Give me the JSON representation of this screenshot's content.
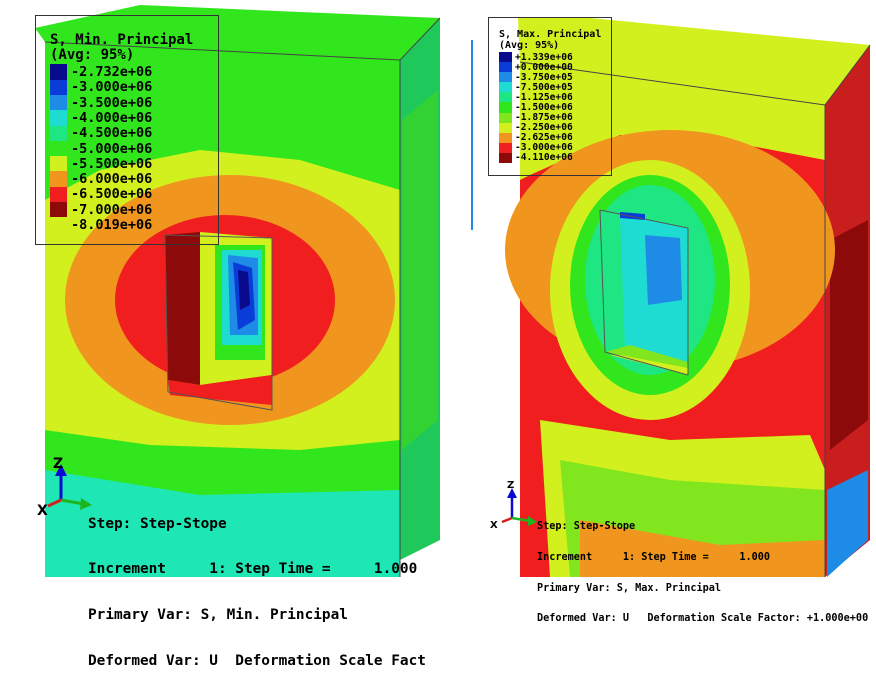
{
  "left": {
    "legend": {
      "title_line1": "S, Min. Principal",
      "title_line2": "(Avg: 95%)",
      "entries": [
        {
          "label": "-2.732e+06",
          "color": "#0a0a8c"
        },
        {
          "label": "-3.000e+06",
          "color": "#0a3cd8"
        },
        {
          "label": "-3.500e+06",
          "color": "#1e8ce6"
        },
        {
          "label": "-4.000e+06",
          "color": "#1edcd2"
        },
        {
          "label": "-4.500e+06",
          "color": "#1ee682"
        },
        {
          "label": "-5.000e+06",
          "color": "#32e61e"
        },
        {
          "label": "-5.500e+06",
          "color": "#d2f01e"
        },
        {
          "label": "-6.000e+06",
          "color": "#f0961e"
        },
        {
          "label": "-6.500e+06",
          "color": "#f01e1e"
        },
        {
          "label": "-7.000e+06",
          "color": "#8c0a0a"
        },
        {
          "label": "-8.019e+06",
          "color": ""
        }
      ]
    },
    "axes": {
      "z": "Z",
      "x": "X"
    },
    "info": {
      "step": "Step: Step-Stope",
      "increment": "Increment     1: Step Time =     1.000",
      "primary_var": "Primary Var: S, Min. Principal",
      "deformed_var": "Deformed Var: U  Deformation Scale Fact"
    }
  },
  "right": {
    "legend": {
      "title_line1": "S, Max. Principal",
      "title_line2": "(Avg: 95%)",
      "entries": [
        {
          "label": "+1.339e+06",
          "color": "#0a0a8c"
        },
        {
          "label": "+0.000e+00",
          "color": "#0a3cd8"
        },
        {
          "label": "-3.750e+05",
          "color": "#1e8ce6"
        },
        {
          "label": "-7.500e+05",
          "color": "#1edcd2"
        },
        {
          "label": "-1.125e+06",
          "color": "#1ee682"
        },
        {
          "label": "-1.500e+06",
          "color": "#32e61e"
        },
        {
          "label": "-1.875e+06",
          "color": "#82e61e"
        },
        {
          "label": "-2.250e+06",
          "color": "#d2f01e"
        },
        {
          "label": "-2.625e+06",
          "color": "#f0961e"
        },
        {
          "label": "-3.000e+06",
          "color": "#f01e1e"
        },
        {
          "label": "-4.110e+06",
          "color": "#8c0a0a"
        }
      ]
    },
    "axes": {
      "z": "Z",
      "x": "X"
    },
    "info": {
      "step": "Step: Step-Stope",
      "increment": "Increment     1: Step Time =     1.000",
      "primary_var": "Primary Var: S, Max. Principal",
      "deformed_var": "Deformed Var: U   Deformation Scale Factor: +1.000e+00"
    }
  }
}
